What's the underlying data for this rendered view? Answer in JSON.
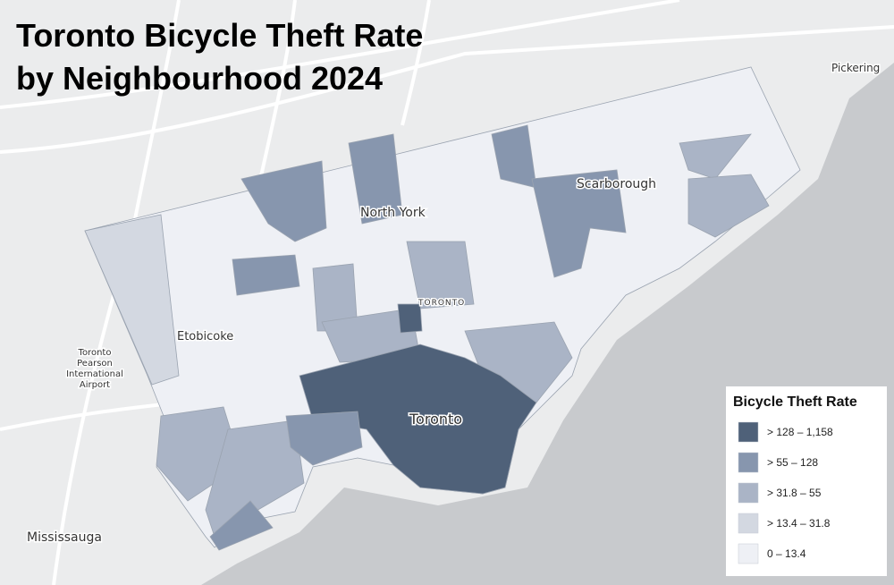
{
  "title": [
    "Toronto Bicycle Theft Rate",
    "by Neighbourhood 2024"
  ],
  "places": {
    "pickering": "Pickering",
    "scarborough": "Scarborough",
    "north_york": "North York",
    "toronto_caps": "TORONTO",
    "etobicoke": "Etobicoke",
    "airport": [
      "Toronto",
      "Pearson",
      "International",
      "Airport"
    ],
    "toronto": "Toronto",
    "mississauga": "Mississauga"
  },
  "legend": {
    "title": "Bicycle Theft Rate",
    "items": [
      {
        "label": "> 128 – 1,158",
        "color": "#4f6179"
      },
      {
        "label": "> 55 – 128",
        "color": "#8796ae"
      },
      {
        "label": "> 31.8 – 55",
        "color": "#aab4c6"
      },
      {
        "label": "> 13.4 – 31.8",
        "color": "#d3d8e1"
      },
      {
        "label": "0 – 13.4",
        "color": "#eef0f5"
      }
    ]
  }
}
